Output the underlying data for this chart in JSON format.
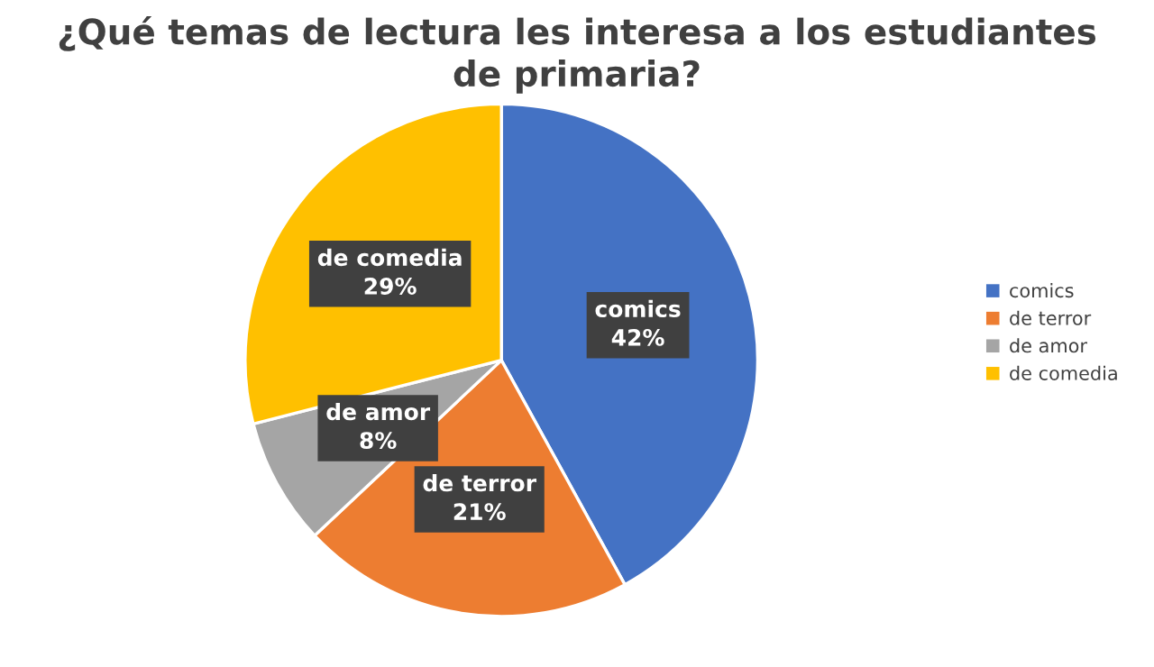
{
  "chart_data": {
    "type": "pie",
    "title": "¿Qué temas de lectura les interesa a los estudiantes\nde primaria?",
    "categories": [
      "comics",
      "de terror",
      "de amor",
      "de comedia"
    ],
    "values": [
      42,
      21,
      8,
      29
    ],
    "value_labels": [
      "42%",
      "21%",
      "8%",
      "29%"
    ],
    "colors": [
      "#4472c4",
      "#ed7d31",
      "#a5a5a5",
      "#ffc000"
    ],
    "legend": "right"
  }
}
